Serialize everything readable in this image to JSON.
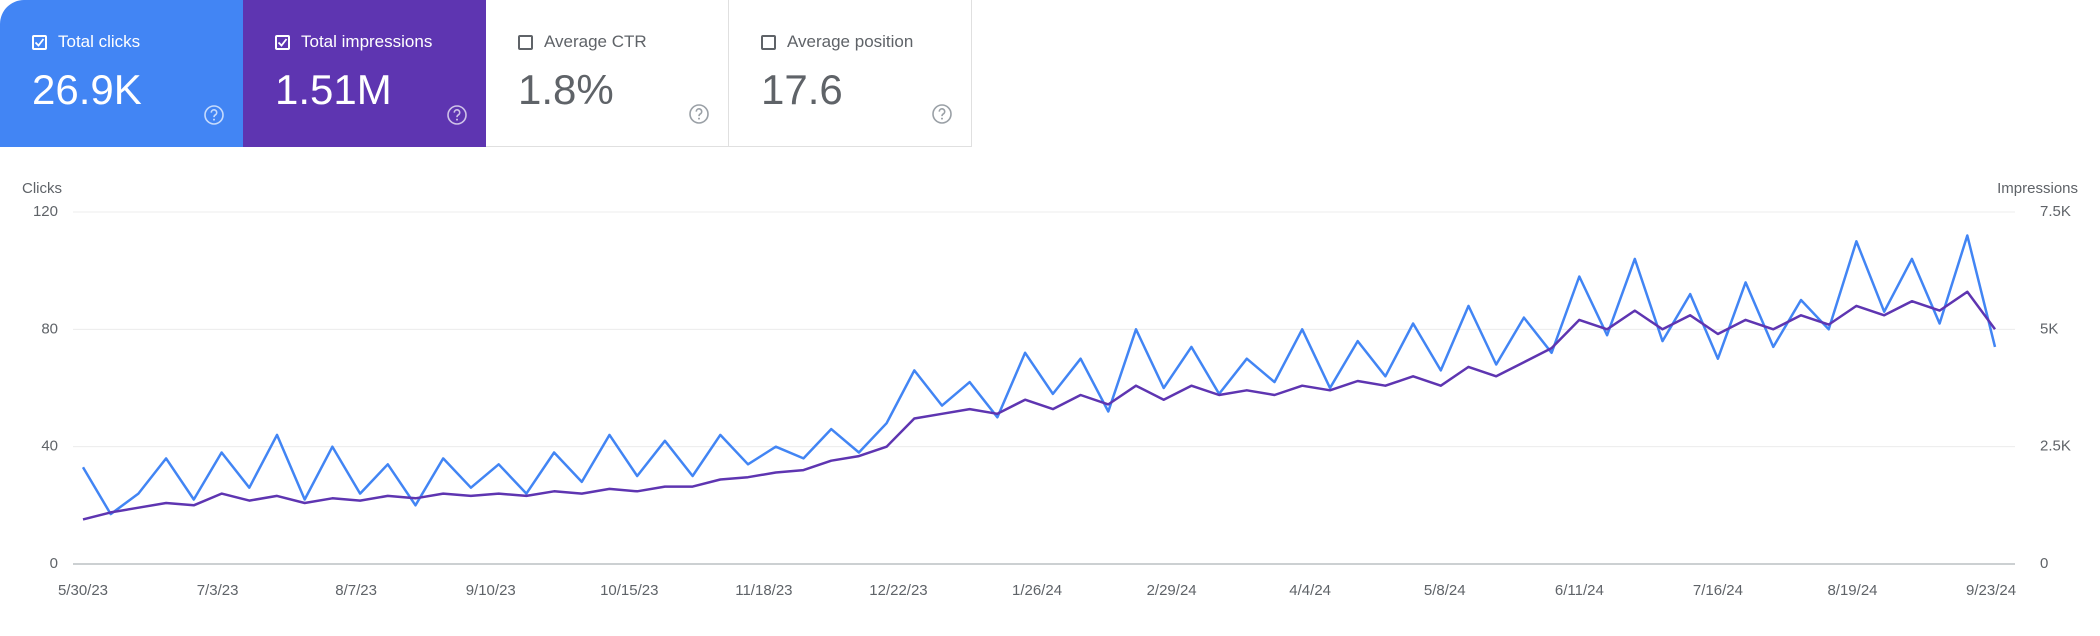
{
  "metrics": [
    {
      "label": "Total clicks",
      "value": "26.9K",
      "selected": true,
      "color": "#4285f4"
    },
    {
      "label": "Total impressions",
      "value": "1.51M",
      "selected": true,
      "color": "#5e35b1"
    },
    {
      "label": "Average CTR",
      "value": "1.8%",
      "selected": false,
      "color": "#ffffff"
    },
    {
      "label": "Average position",
      "value": "17.6",
      "selected": false,
      "color": "#ffffff"
    }
  ],
  "chart_data": {
    "type": "line",
    "y_label": "Clicks",
    "y2_label": "Impressions",
    "x": [
      "5/30/23",
      "6/6/23",
      "6/13/23",
      "6/20/23",
      "6/27/23",
      "7/4/23",
      "7/11/23",
      "7/18/23",
      "7/25/23",
      "8/1/23",
      "8/8/23",
      "8/15/23",
      "8/22/23",
      "8/29/23",
      "9/5/23",
      "9/12/23",
      "9/19/23",
      "9/26/23",
      "10/3/23",
      "10/10/23",
      "10/17/23",
      "10/24/23",
      "10/31/23",
      "11/7/23",
      "11/14/23",
      "11/21/23",
      "11/28/23",
      "12/5/23",
      "12/12/23",
      "12/19/23",
      "12/26/23",
      "1/2/24",
      "1/9/24",
      "1/16/24",
      "1/23/24",
      "1/30/24",
      "2/6/24",
      "2/13/24",
      "2/20/24",
      "2/27/24",
      "3/5/24",
      "3/12/24",
      "3/19/24",
      "3/26/24",
      "4/2/24",
      "4/9/24",
      "4/16/24",
      "4/23/24",
      "4/30/24",
      "5/7/24",
      "5/14/24",
      "5/21/24",
      "5/28/24",
      "6/4/24",
      "6/11/24",
      "6/18/24",
      "6/25/24",
      "7/2/24",
      "7/9/24",
      "7/16/24",
      "7/23/24",
      "7/30/24",
      "8/6/24",
      "8/13/24",
      "8/20/24",
      "8/27/24",
      "9/3/24",
      "9/10/24",
      "9/17/24",
      "9/24/24"
    ],
    "xlim": [
      "5/30/23",
      "9/24/24"
    ],
    "xticks": [
      "5/30/23",
      "7/3/23",
      "8/7/23",
      "9/10/23",
      "10/15/23",
      "11/18/23",
      "12/22/23",
      "1/26/24",
      "2/29/24",
      "4/4/24",
      "5/8/24",
      "6/11/24",
      "7/16/24",
      "8/19/24",
      "9/23/24"
    ],
    "ylim": [
      0,
      120
    ],
    "yticks": [
      0,
      40,
      80,
      120
    ],
    "y2lim": [
      0,
      7500
    ],
    "y2ticks": [
      0,
      {
        "value": 2500,
        "label": "2.5K"
      },
      {
        "value": 5000,
        "label": "5K"
      },
      {
        "value": 7500,
        "label": "7.5K"
      }
    ],
    "grid": true,
    "series": [
      {
        "name": "Clicks",
        "color": "#4285f4",
        "axis": "y",
        "values": [
          33,
          17,
          24,
          36,
          22,
          38,
          26,
          44,
          22,
          40,
          24,
          34,
          20,
          36,
          26,
          34,
          24,
          38,
          28,
          44,
          30,
          42,
          30,
          44,
          34,
          40,
          36,
          46,
          38,
          48,
          66,
          54,
          62,
          50,
          72,
          58,
          70,
          52,
          80,
          60,
          74,
          58,
          70,
          62,
          80,
          60,
          76,
          64,
          82,
          66,
          88,
          68,
          84,
          72,
          98,
          78,
          104,
          76,
          92,
          70,
          96,
          74,
          90,
          80,
          110,
          86,
          104,
          82,
          112,
          74
        ]
      },
      {
        "name": "Impressions",
        "color": "#5e35b1",
        "axis": "y2",
        "values": [
          950,
          1100,
          1200,
          1300,
          1250,
          1500,
          1350,
          1450,
          1300,
          1400,
          1350,
          1450,
          1400,
          1500,
          1450,
          1500,
          1450,
          1550,
          1500,
          1600,
          1550,
          1650,
          1650,
          1800,
          1850,
          1950,
          2000,
          2200,
          2300,
          2500,
          3100,
          3200,
          3300,
          3200,
          3500,
          3300,
          3600,
          3400,
          3800,
          3500,
          3800,
          3600,
          3700,
          3600,
          3800,
          3700,
          3900,
          3800,
          4000,
          3800,
          4200,
          4000,
          4300,
          4600,
          5200,
          5000,
          5400,
          5000,
          5300,
          4900,
          5200,
          5000,
          5300,
          5100,
          5500,
          5300,
          5600,
          5400,
          5800,
          5000
        ]
      }
    ]
  }
}
